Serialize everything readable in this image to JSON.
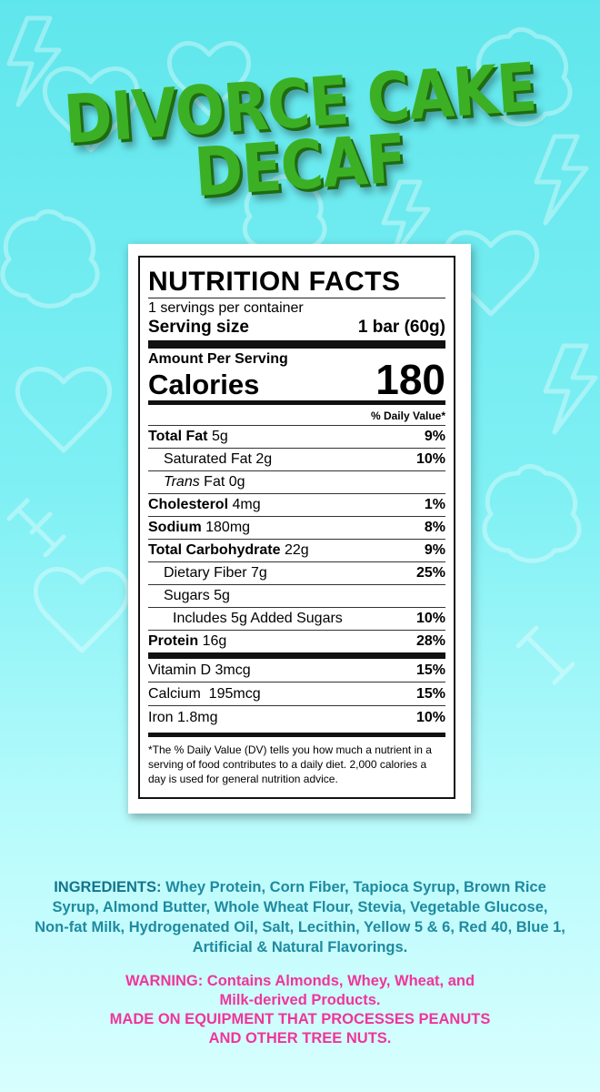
{
  "product": {
    "title_line1": "DIVORCE CAKE",
    "title_line2": "DECAF"
  },
  "label": {
    "heading": "NUTRITION FACTS",
    "servings_per_container": "1 servings per container",
    "serving_size_label": "Serving size",
    "serving_size_value": "1 bar (60g)",
    "amount_per_serving": "Amount Per Serving",
    "calories_label": "Calories",
    "calories_value": "180",
    "dv_header": "% Daily Value*",
    "nutrients": [
      {
        "name": "Total Fat",
        "amount": "5g",
        "dv": "9%"
      },
      {
        "name": "Saturated Fat",
        "amount": "2g",
        "dv": "10%"
      },
      {
        "name": "Trans",
        "name_rest": "Fat",
        "amount": "0g",
        "dv": ""
      },
      {
        "name": "Cholesterol",
        "amount": "4mg",
        "dv": "1%"
      },
      {
        "name": "Sodium",
        "amount": "180mg",
        "dv": "8%"
      },
      {
        "name": "Total Carbohydrate",
        "amount": "22g",
        "dv": "9%"
      },
      {
        "name": "Dietary Fiber",
        "amount": "7g",
        "dv": "25%"
      },
      {
        "name": "Sugars",
        "amount": "5g",
        "dv": ""
      },
      {
        "name": "Includes 5g Added Sugars",
        "amount": "",
        "dv": "10%"
      },
      {
        "name": "Protein",
        "amount": "16g",
        "dv": "28%"
      }
    ],
    "vitamins": [
      {
        "text": "Vitamin D 3mcg",
        "dv": "15%"
      },
      {
        "text": "Calcium  195mcg",
        "dv": "15%"
      },
      {
        "text": "Iron 1.8mg",
        "dv": "10%"
      }
    ],
    "footnote": "*The % Daily Value (DV) tells you how much a nutrient in a serving of food contributes to a daily diet. 2,000 calories a day is used for general nutrition advice."
  },
  "ingredients": {
    "lead": "INGREDIENTS:",
    "text": "Whey Protein, Corn Fiber, Tapioca Syrup, Brown Rice Syrup, Almond Butter, Whole Wheat Flour, Stevia, Vegetable Glucose, Non-fat Milk, Hydrogenated Oil, Salt, Lecithin, Yellow 5 & 6, Red 40, Blue 1, Artificial & Natural Flavorings."
  },
  "warning": {
    "line1": "WARNING: Contains Almonds, Whey, Wheat, and",
    "line2": "Milk-derived Products.",
    "line3": "MADE ON EQUIPMENT THAT PROCESSES PEANUTS",
    "line4": "AND OTHER TREE NUTS."
  },
  "colors": {
    "title_green": "#3cb024",
    "ingredients_blue": "#1f8aa0",
    "warning_pink": "#f0359a"
  },
  "background_icons": [
    "heart-icon",
    "brain-icon",
    "lightning-icon",
    "dumbbell-icon"
  ]
}
